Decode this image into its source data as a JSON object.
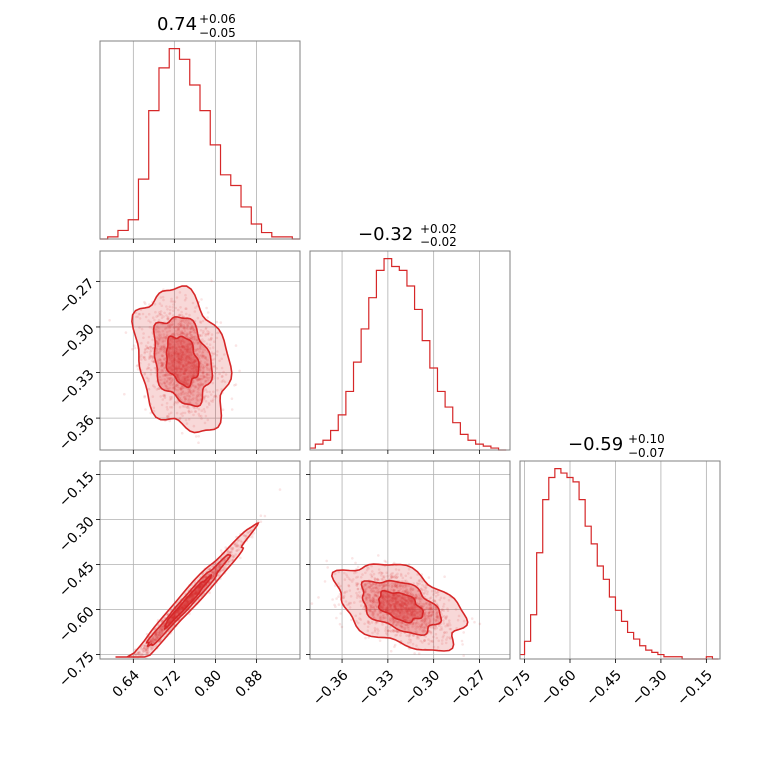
{
  "chart_data": {
    "type": "corner",
    "accent_color": "#d62728",
    "grid": true,
    "parameters": [
      {
        "title": {
          "value": "0.74",
          "plus": "+0.06",
          "minus": "−0.05"
        },
        "range": [
          0.575,
          0.965
        ],
        "ticks": [
          0.64,
          0.72,
          0.8,
          0.88
        ],
        "tick_labels": [
          "0.64",
          "0.72",
          "0.80",
          "0.88"
        ]
      },
      {
        "title": {
          "value": "−0.32",
          "plus": "+0.02",
          "minus": "−0.02"
        },
        "range": [
          -0.381,
          -0.25
        ],
        "ticks": [
          -0.36,
          -0.33,
          -0.3,
          -0.27
        ],
        "tick_labels": [
          "−0.36",
          "−0.33",
          "−0.30",
          "−0.27"
        ]
      },
      {
        "title": {
          "value": "−0.59",
          "plus": "+0.10",
          "minus": "−0.07"
        },
        "range": [
          -0.765,
          -0.105
        ],
        "ticks": [
          -0.75,
          -0.6,
          -0.45,
          -0.3,
          -0.15
        ],
        "tick_labels": [
          "−0.75",
          "−0.60",
          "−0.45",
          "−0.30",
          "−0.15"
        ]
      }
    ],
    "histograms": [
      {
        "param": 0,
        "x": [
          0.58,
          0.6,
          0.62,
          0.64,
          0.66,
          0.68,
          0.7,
          0.72,
          0.74,
          0.76,
          0.78,
          0.8,
          0.82,
          0.84,
          0.86,
          0.88,
          0.9,
          0.92,
          0.94,
          0.96
        ],
        "y": [
          0,
          1,
          4,
          9,
          28,
          60,
          80,
          89,
          84,
          72,
          60,
          44,
          30,
          25,
          15,
          7,
          3,
          1,
          1,
          0
        ]
      },
      {
        "param": 1,
        "x": [
          -0.38,
          -0.375,
          -0.37,
          -0.365,
          -0.36,
          -0.355,
          -0.35,
          -0.345,
          -0.34,
          -0.335,
          -0.33,
          -0.325,
          -0.32,
          -0.315,
          -0.31,
          -0.305,
          -0.3,
          -0.295,
          -0.29,
          -0.285,
          -0.28,
          -0.275,
          -0.27,
          -0.265,
          -0.26,
          -0.255
        ],
        "y": [
          1,
          3,
          5,
          10,
          18,
          30,
          45,
          62,
          78,
          92,
          98,
          94,
          92,
          84,
          72,
          56,
          42,
          30,
          22,
          14,
          8,
          5,
          3,
          2,
          1,
          0
        ]
      },
      {
        "param": 2,
        "x": [
          -0.76,
          -0.74,
          -0.72,
          -0.7,
          -0.68,
          -0.66,
          -0.64,
          -0.62,
          -0.6,
          -0.58,
          -0.56,
          -0.54,
          -0.52,
          -0.5,
          -0.48,
          -0.46,
          -0.44,
          -0.42,
          -0.4,
          -0.38,
          -0.36,
          -0.34,
          -0.32,
          -0.3,
          -0.28,
          -0.26,
          -0.24,
          -0.22,
          -0.2,
          -0.18,
          -0.16,
          -0.14,
          -0.12
        ],
        "y": [
          2,
          8,
          20,
          48,
          72,
          82,
          86,
          84,
          82,
          80,
          72,
          60,
          52,
          42,
          36,
          28,
          22,
          17,
          12,
          9,
          6,
          4,
          3,
          2,
          1,
          1,
          1,
          0,
          0,
          0,
          0,
          1,
          0
        ]
      }
    ],
    "scatter": [
      {
        "x_param": 0,
        "y_param": 1,
        "center": [
          0.735,
          -0.322
        ],
        "sd": [
          0.035,
          0.018
        ],
        "corr": -0.25
      },
      {
        "x_param": 0,
        "y_param": 2,
        "center": [
          0.745,
          -0.575
        ],
        "sd": [
          0.05,
          0.095
        ],
        "corr": 0.985
      },
      {
        "x_param": 1,
        "y_param": 2,
        "center": [
          -0.322,
          -0.59
        ],
        "sd": [
          0.016,
          0.055
        ],
        "corr": -0.42
      }
    ]
  }
}
